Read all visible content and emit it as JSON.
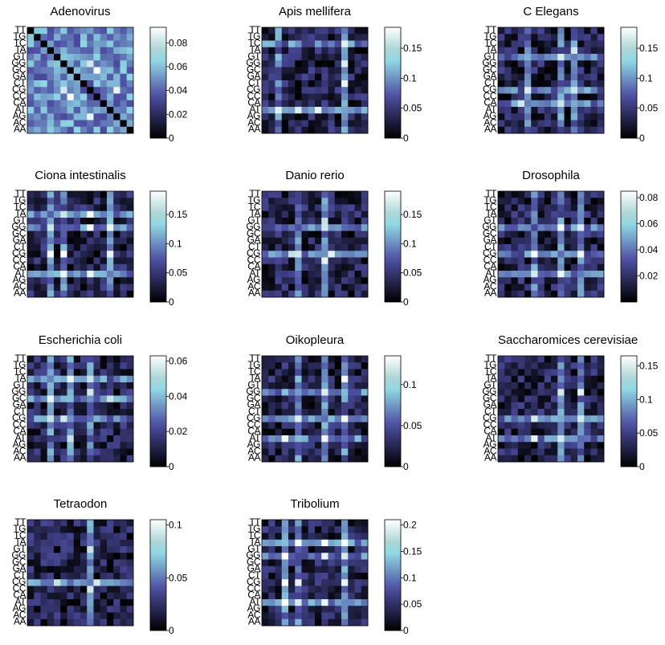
{
  "figure": {
    "background": "#ffffff",
    "colormap": "bone"
  },
  "chart_data": [
    {
      "type": "heatmap",
      "title": "Adenovirus",
      "pattern": "adenovirus",
      "y_labels": [
        "TT",
        "TG",
        "TC",
        "TA",
        "GT",
        "GG",
        "GC",
        "GA",
        "CT",
        "CG",
        "CC",
        "CA",
        "AT",
        "AG",
        "AC",
        "AA"
      ],
      "colorbar_ticks": [
        "0.08",
        "0.06",
        "0.04",
        "0.02",
        "0"
      ],
      "colorbar_tick_values": [
        0.08,
        0.06,
        0.04,
        0.02,
        0
      ],
      "vmax": 0.093
    },
    {
      "type": "heatmap",
      "title": "Apis mellifera",
      "pattern": "apis",
      "y_labels": [
        "TT",
        "TG",
        "TC",
        "TA",
        "GT",
        "GG",
        "GC",
        "GA",
        "CT",
        "CG",
        "CC",
        "CA",
        "AT",
        "AG",
        "AC",
        "AA"
      ],
      "colorbar_ticks": [
        "0.15",
        "0.1",
        "0.05",
        "0"
      ],
      "colorbar_tick_values": [
        0.15,
        0.1,
        0.05,
        0
      ],
      "vmax": 0.185
    },
    {
      "type": "heatmap",
      "title": "C Elegans",
      "pattern": "celegans",
      "y_labels": [
        "TT",
        "TG",
        "TC",
        "TA",
        "GT",
        "GG",
        "GC",
        "GA",
        "CT",
        "CG",
        "CC",
        "CA",
        "AT",
        "AG",
        "AC",
        "AA"
      ],
      "colorbar_ticks": [
        "0.15",
        "0.1",
        "0.05",
        "0"
      ],
      "colorbar_tick_values": [
        0.15,
        0.1,
        0.05,
        0
      ],
      "vmax": 0.185
    },
    {
      "type": "heatmap",
      "title": "Ciona intestinalis",
      "pattern": "ciona",
      "y_labels": [
        "TT",
        "TG",
        "TC",
        "TA",
        "GT",
        "GG",
        "GC",
        "GA",
        "CT",
        "CG",
        "CC",
        "CA",
        "AT",
        "AG",
        "AC",
        "AA"
      ],
      "colorbar_ticks": [
        "0.15",
        "0.1",
        "0.05",
        "0"
      ],
      "colorbar_tick_values": [
        0.15,
        0.1,
        0.05,
        0
      ],
      "vmax": 0.19
    },
    {
      "type": "heatmap",
      "title": "Danio rerio",
      "pattern": "danio",
      "y_labels": [
        "TT",
        "TG",
        "TC",
        "TA",
        "GT",
        "GG",
        "GC",
        "GA",
        "CT",
        "CG",
        "CC",
        "CA",
        "AT",
        "AG",
        "AC",
        "AA"
      ],
      "colorbar_ticks": [
        "0.15",
        "0.1",
        "0.05",
        "0"
      ],
      "colorbar_tick_values": [
        0.15,
        0.1,
        0.05,
        0
      ],
      "vmax": 0.19
    },
    {
      "type": "heatmap",
      "title": "Drosophila",
      "pattern": "drosophila",
      "y_labels": [
        "TT",
        "TG",
        "TC",
        "TA",
        "GT",
        "GG",
        "GC",
        "GA",
        "CT",
        "CG",
        "CC",
        "CA",
        "AT",
        "AG",
        "AC",
        "AA"
      ],
      "colorbar_ticks": [
        "0.08",
        "0.06",
        "0.04",
        "0.02"
      ],
      "colorbar_tick_values": [
        0.08,
        0.06,
        0.04,
        0.02
      ],
      "vmax": 0.085
    },
    {
      "type": "heatmap",
      "title": "Escherichia coli",
      "pattern": "ecoli",
      "y_labels": [
        "TT",
        "TG",
        "TC",
        "TA",
        "GT",
        "GG",
        "GC",
        "GA",
        "CT",
        "CG",
        "CC",
        "CA",
        "AT",
        "AG",
        "AC",
        "AA"
      ],
      "colorbar_ticks": [
        "0.06",
        "0.04",
        "0.02",
        "0"
      ],
      "colorbar_tick_values": [
        0.06,
        0.04,
        0.02,
        0
      ],
      "vmax": 0.063
    },
    {
      "type": "heatmap",
      "title": "Oikopleura",
      "pattern": "oikopleura",
      "y_labels": [
        "TT",
        "TG",
        "TC",
        "TA",
        "GT",
        "GG",
        "GC",
        "GA",
        "CT",
        "CG",
        "CC",
        "CA",
        "AT",
        "AG",
        "AC",
        "AA"
      ],
      "colorbar_ticks": [
        "0.1",
        "0.05",
        "0"
      ],
      "colorbar_tick_values": [
        0.1,
        0.05,
        0
      ],
      "vmax": 0.135
    },
    {
      "type": "heatmap",
      "title": "Saccharomices cerevisiae",
      "pattern": "yeast",
      "y_labels": [
        "TT",
        "TG",
        "TC",
        "TA",
        "GT",
        "GG",
        "GC",
        "GA",
        "CT",
        "CG",
        "CC",
        "CA",
        "AT",
        "AG",
        "AC",
        "AA"
      ],
      "colorbar_ticks": [
        "0.15",
        "0.1",
        "0.05",
        "0"
      ],
      "colorbar_tick_values": [
        0.15,
        0.1,
        0.05,
        0
      ],
      "vmax": 0.165
    },
    {
      "type": "heatmap",
      "title": "Tetraodon",
      "pattern": "tetraodon",
      "y_labels": [
        "TT",
        "TG",
        "TC",
        "TA",
        "GT",
        "GG",
        "GC",
        "GA",
        "CT",
        "CG",
        "CC",
        "CA",
        "AT",
        "AG",
        "AC",
        "AA"
      ],
      "colorbar_ticks": [
        "0.1",
        "0.05",
        "0"
      ],
      "colorbar_tick_values": [
        0.1,
        0.05,
        0
      ],
      "vmax": 0.105
    },
    {
      "type": "heatmap",
      "title": "Tribolium",
      "pattern": "tribolium",
      "y_labels": [
        "TT",
        "TG",
        "TC",
        "TA",
        "GT",
        "GG",
        "GC",
        "GA",
        "CT",
        "CG",
        "CC",
        "CA",
        "AT",
        "AG",
        "AC",
        "AA"
      ],
      "colorbar_ticks": [
        "0.2",
        "0.15",
        "0.1",
        "0.05",
        "0"
      ],
      "colorbar_tick_values": [
        0.2,
        0.15,
        0.1,
        0.05,
        0
      ],
      "vmax": 0.21
    }
  ]
}
